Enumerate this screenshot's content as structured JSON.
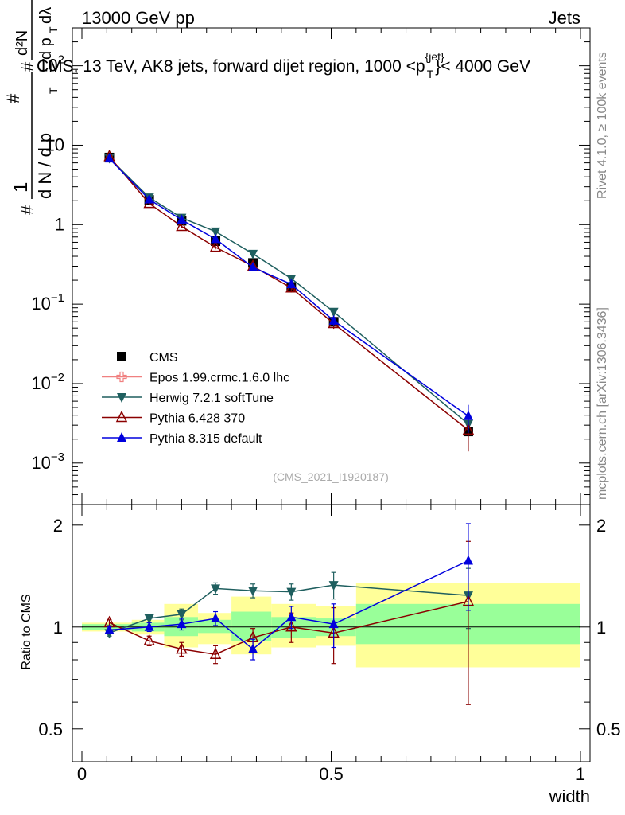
{
  "header": {
    "left": "13000 GeV pp",
    "right": "Jets",
    "plot_title": "CMS, 13 TeV, AK8 jets, forward dijet region, 1000 <p",
    "plot_title_sup": "{jet}",
    "plot_title_sub": "T",
    "plot_title_end": "}< 4000 GeV"
  },
  "side_text": {
    "rivet": "Rivet 4.1.0, ≥ 100k events",
    "mcplots": "mcplots.cern.ch [arXiv:1306.3436]"
  },
  "watermark": "(CMS_2021_I1920187)",
  "colors": {
    "CMS": "#000000",
    "Epos": "#f08080",
    "Herwig": "#1f5f5f",
    "Pythia6": "#8b0000",
    "Pythia8": "#0000dd",
    "band_outer": "#ffff99",
    "band_inner": "#99ff99"
  },
  "chart_data": [
    {
      "type": "scatter",
      "panel": "main",
      "title": "CMS, 13 TeV, AK8 jets, forward dijet region, 1000 <p_T^{jet}< 4000 GeV",
      "ylabel": "1/(dN/dp_T) d²N/(dp_T dλ)",
      "ylabel_parts": {
        "hash1": "#",
        "hash2": "#",
        "hash3": "#",
        "one": "1",
        "dN": "d N / d p",
        "T": "T",
        "d2N": "d²N",
        "dpTdl": "d p",
        "T2": "T",
        "dl": "dλ"
      },
      "xlabel": "width",
      "xlim": [
        0,
        1
      ],
      "ylim": [
        0.0003,
        300
      ],
      "yscale": "log",
      "x_ticks": [
        "0",
        "0.5",
        "1"
      ],
      "y_tick_labels": [
        {
          "value": 0.001,
          "base": "10",
          "exp": "−3"
        },
        {
          "value": 0.01,
          "base": "10",
          "exp": "−2"
        },
        {
          "value": 0.1,
          "base": "10",
          "exp": "−1"
        },
        {
          "value": 1,
          "base": "1",
          "exp": ""
        },
        {
          "value": 10,
          "base": "10",
          "exp": ""
        },
        {
          "value": 100,
          "base": "10",
          "exp": "2"
        }
      ],
      "x": [
        0.055,
        0.135,
        0.2,
        0.268,
        0.343,
        0.42,
        0.505,
        0.775
      ],
      "series": [
        {
          "name": "CMS",
          "key": "CMS",
          "marker": "square",
          "line": false,
          "values": [
            7.0,
            2.05,
            1.12,
            0.62,
            0.33,
            0.165,
            0.06,
            0.0025
          ]
        },
        {
          "name": "Epos 1.99.crmc.1.6.0 lhc",
          "key": "Epos",
          "marker": "cross-open",
          "line": true,
          "values": [
            null,
            null,
            null,
            null,
            null,
            null,
            null,
            null
          ]
        },
        {
          "name": "Herwig 7.2.1 softTune",
          "key": "Herwig",
          "marker": "triangle-down",
          "line": true,
          "values": [
            6.9,
            2.2,
            1.22,
            0.82,
            0.43,
            0.21,
            0.08,
            0.0031
          ],
          "errors": [
            0.3,
            0.1,
            0.06,
            0.04,
            0.03,
            0.02,
            0.008,
            0.001
          ]
        },
        {
          "name": "Pythia 6.428 370",
          "key": "Pythia6",
          "marker": "triangle-up-open",
          "line": true,
          "values": [
            7.2,
            1.85,
            0.95,
            0.52,
            0.3,
            0.16,
            0.057,
            0.0026
          ],
          "errors": [
            0.3,
            0.1,
            0.05,
            0.03,
            0.02,
            0.02,
            0.008,
            0.0012
          ]
        },
        {
          "name": "Pythia 8.315 default",
          "key": "Pythia8",
          "marker": "triangle-up",
          "line": true,
          "values": [
            6.8,
            2.08,
            1.15,
            0.66,
            0.29,
            0.178,
            0.062,
            0.0039
          ],
          "errors": [
            0.3,
            0.1,
            0.06,
            0.04,
            0.02,
            0.02,
            0.008,
            0.0015
          ]
        }
      ],
      "legend": [
        "CMS",
        "Epos 1.99.crmc.1.6.0 lhc",
        "Herwig 7.2.1 softTune",
        "Pythia 6.428 370",
        "Pythia 8.315 default"
      ],
      "legend_position": "bottom-left"
    },
    {
      "type": "scatter",
      "panel": "ratio",
      "ylabel": "Ratio to CMS",
      "xlabel": "width",
      "xlim": [
        0,
        1
      ],
      "ylim": [
        0.4,
        2.3
      ],
      "yscale": "log",
      "y_ticks": [
        "0.5",
        "1",
        "2"
      ],
      "bands": [
        {
          "x0": 0.0,
          "x1": 0.1,
          "outer": [
            0.97,
            1.03
          ],
          "inner": [
            0.98,
            1.02
          ]
        },
        {
          "x0": 0.1,
          "x1": 0.165,
          "outer": [
            0.95,
            1.05
          ],
          "inner": [
            0.97,
            1.03
          ]
        },
        {
          "x0": 0.165,
          "x1": 0.233,
          "outer": [
            0.87,
            1.17
          ],
          "inner": [
            0.94,
            1.07
          ]
        },
        {
          "x0": 0.233,
          "x1": 0.3,
          "outer": [
            0.89,
            1.1
          ],
          "inner": [
            0.96,
            1.05
          ]
        },
        {
          "x0": 0.3,
          "x1": 0.38,
          "outer": [
            0.83,
            1.23
          ],
          "inner": [
            0.91,
            1.11
          ]
        },
        {
          "x0": 0.38,
          "x1": 0.47,
          "outer": [
            0.87,
            1.17
          ],
          "inner": [
            0.93,
            1.07
          ]
        },
        {
          "x0": 0.47,
          "x1": 0.55,
          "outer": [
            0.88,
            1.15
          ],
          "inner": [
            0.94,
            1.06
          ]
        },
        {
          "x0": 0.55,
          "x1": 1.0,
          "outer": [
            0.76,
            1.35
          ],
          "inner": [
            0.89,
            1.17
          ]
        }
      ],
      "x": [
        0.055,
        0.135,
        0.2,
        0.268,
        0.343,
        0.42,
        0.505,
        0.775
      ],
      "series": [
        {
          "name": "Herwig 7.2.1 softTune",
          "key": "Herwig",
          "marker": "triangle-down",
          "values": [
            0.96,
            1.06,
            1.09,
            1.3,
            1.28,
            1.27,
            1.33,
            1.24
          ],
          "errors": [
            0.02,
            0.03,
            0.04,
            0.05,
            0.06,
            0.07,
            0.12,
            0.25
          ]
        },
        {
          "name": "Pythia 6.428 370",
          "key": "Pythia6",
          "marker": "triangle-up-open",
          "values": [
            1.03,
            0.91,
            0.86,
            0.83,
            0.93,
            1.0,
            0.96,
            1.19
          ],
          "errors": [
            0.02,
            0.03,
            0.04,
            0.05,
            0.06,
            0.1,
            0.18,
            0.6
          ]
        },
        {
          "name": "Pythia 8.315 default",
          "key": "Pythia8",
          "marker": "triangle-up",
          "values": [
            0.98,
            1.0,
            1.02,
            1.06,
            0.86,
            1.07,
            1.02,
            1.57
          ],
          "errors": [
            0.02,
            0.03,
            0.04,
            0.05,
            0.06,
            0.08,
            0.15,
            0.45
          ]
        }
      ]
    }
  ]
}
